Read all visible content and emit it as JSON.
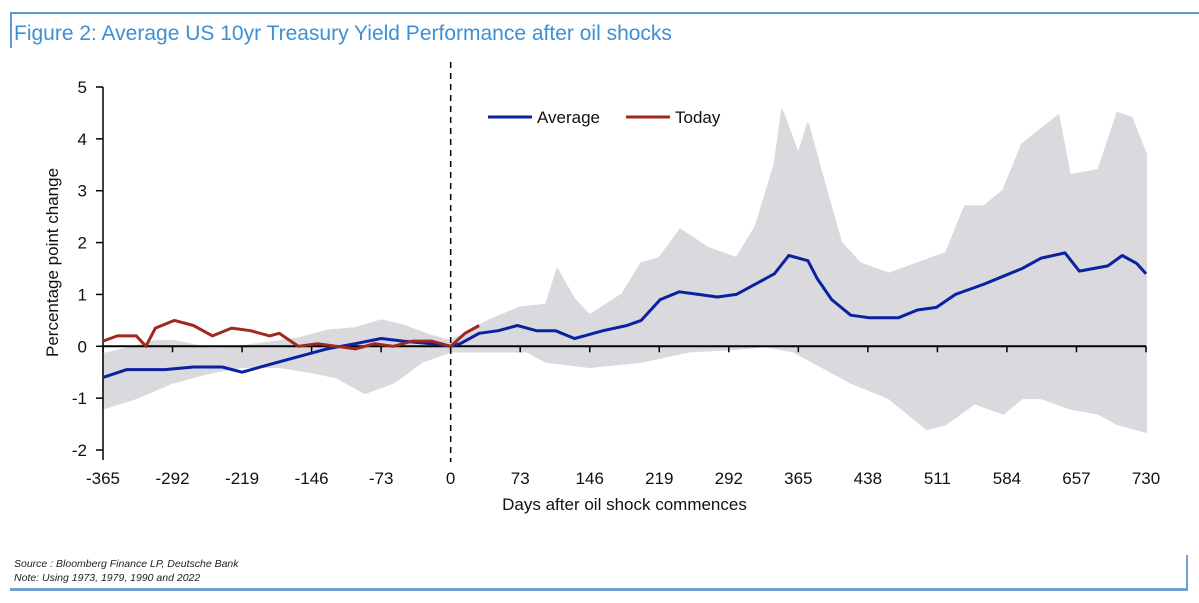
{
  "title": "Figure 2: Average US 10yr Treasury Yield Performance after oil shocks",
  "source": "Source : Bloomberg Finance LP, Deutsche Bank",
  "note": "Note: Using 1973, 1979, 1990 and 2022",
  "colors": {
    "average": "#0a22a0",
    "today": "#a0281e",
    "band": "#d9d9de",
    "accent": "#3d8fd6"
  },
  "chart_data": {
    "type": "line",
    "title": "Figure 2: Average US 10yr Treasury Yield Performance after oil shocks",
    "xlabel": "Days after oil shock commences",
    "ylabel": "Percentage point change",
    "xlim": [
      -365,
      730
    ],
    "ylim": [
      -2,
      5
    ],
    "xticks": [
      -365,
      -292,
      -219,
      -146,
      -73,
      0,
      73,
      146,
      219,
      292,
      365,
      438,
      511,
      584,
      657,
      730
    ],
    "yticks": [
      -2,
      -1,
      0,
      1,
      2,
      3,
      4,
      5
    ],
    "legend": {
      "placement": "top-center",
      "entries": [
        "Average",
        "Today"
      ]
    },
    "vertical_marker": 0,
    "series": [
      {
        "name": "Average",
        "x": [
          -365,
          -340,
          -300,
          -270,
          -240,
          -219,
          -190,
          -160,
          -130,
          -100,
          -73,
          -50,
          -20,
          0,
          10,
          30,
          50,
          70,
          90,
          110,
          130,
          140,
          160,
          185,
          200,
          220,
          240,
          260,
          280,
          300,
          320,
          340,
          355,
          375,
          385,
          400,
          420,
          440,
          470,
          490,
          510,
          530,
          560,
          580,
          600,
          620,
          645,
          660,
          690,
          705,
          720,
          730
        ],
        "y": [
          -0.6,
          -0.45,
          -0.45,
          -0.4,
          -0.4,
          -0.5,
          -0.35,
          -0.2,
          -0.05,
          0.05,
          0.15,
          0.1,
          0.05,
          0.0,
          0.05,
          0.25,
          0.3,
          0.4,
          0.3,
          0.3,
          0.15,
          0.2,
          0.3,
          0.4,
          0.5,
          0.9,
          1.05,
          1.0,
          0.95,
          1.0,
          1.2,
          1.4,
          1.75,
          1.65,
          1.3,
          0.9,
          0.6,
          0.55,
          0.55,
          0.7,
          0.75,
          1.0,
          1.2,
          1.35,
          1.5,
          1.7,
          1.8,
          1.45,
          1.55,
          1.75,
          1.6,
          1.4
        ]
      },
      {
        "name": "Today",
        "x": [
          -365,
          -350,
          -330,
          -320,
          -310,
          -290,
          -270,
          -250,
          -230,
          -210,
          -190,
          -180,
          -160,
          -140,
          -120,
          -100,
          -80,
          -60,
          -40,
          -20,
          0,
          15,
          30
        ],
        "y": [
          0.1,
          0.2,
          0.2,
          0.0,
          0.35,
          0.5,
          0.4,
          0.2,
          0.35,
          0.3,
          0.2,
          0.25,
          0.0,
          0.05,
          0.0,
          -0.05,
          0.05,
          0.0,
          0.1,
          0.1,
          0.0,
          0.25,
          0.4
        ]
      },
      {
        "name": "Range upper",
        "x": [
          -365,
          -330,
          -310,
          -290,
          -250,
          -219,
          -180,
          -160,
          -130,
          -100,
          -73,
          -50,
          -20,
          0,
          20,
          40,
          73,
          100,
          112,
          130,
          146,
          180,
          200,
          219,
          241,
          270,
          300,
          320,
          340,
          348,
          365,
          375,
          390,
          410,
          430,
          460,
          490,
          520,
          540,
          560,
          580,
          600,
          638,
          650,
          680,
          700,
          715,
          730
        ],
        "y": [
          -0.15,
          0.0,
          0.1,
          0.1,
          -0.05,
          0.0,
          0.1,
          0.15,
          0.3,
          0.35,
          0.5,
          0.4,
          0.2,
          0.1,
          0.3,
          0.5,
          0.75,
          0.8,
          1.48,
          0.9,
          0.6,
          1.0,
          1.6,
          1.7,
          2.25,
          1.9,
          1.7,
          2.3,
          3.5,
          4.55,
          3.7,
          4.3,
          3.3,
          2.0,
          1.6,
          1.4,
          1.6,
          1.8,
          2.7,
          2.7,
          3.0,
          3.9,
          4.45,
          3.3,
          3.4,
          4.5,
          4.4,
          3.7
        ]
      },
      {
        "name": "Range lower",
        "x": [
          -365,
          -330,
          -292,
          -250,
          -219,
          -180,
          -146,
          -120,
          -90,
          -60,
          -30,
          0,
          20,
          50,
          80,
          100,
          146,
          200,
          250,
          300,
          330,
          360,
          390,
          420,
          460,
          480,
          500,
          520,
          550,
          580,
          600,
          620,
          650,
          680,
          700,
          730
        ],
        "y": [
          -1.2,
          -1.0,
          -0.7,
          -0.5,
          -0.4,
          -0.4,
          -0.5,
          -0.6,
          -0.9,
          -0.7,
          -0.3,
          -0.1,
          -0.1,
          -0.1,
          -0.1,
          -0.3,
          -0.4,
          -0.3,
          -0.1,
          -0.05,
          0.0,
          -0.1,
          -0.4,
          -0.7,
          -1.0,
          -1.3,
          -1.6,
          -1.5,
          -1.1,
          -1.3,
          -1.0,
          -1.0,
          -1.2,
          -1.3,
          -1.5,
          -1.65
        ]
      }
    ]
  }
}
